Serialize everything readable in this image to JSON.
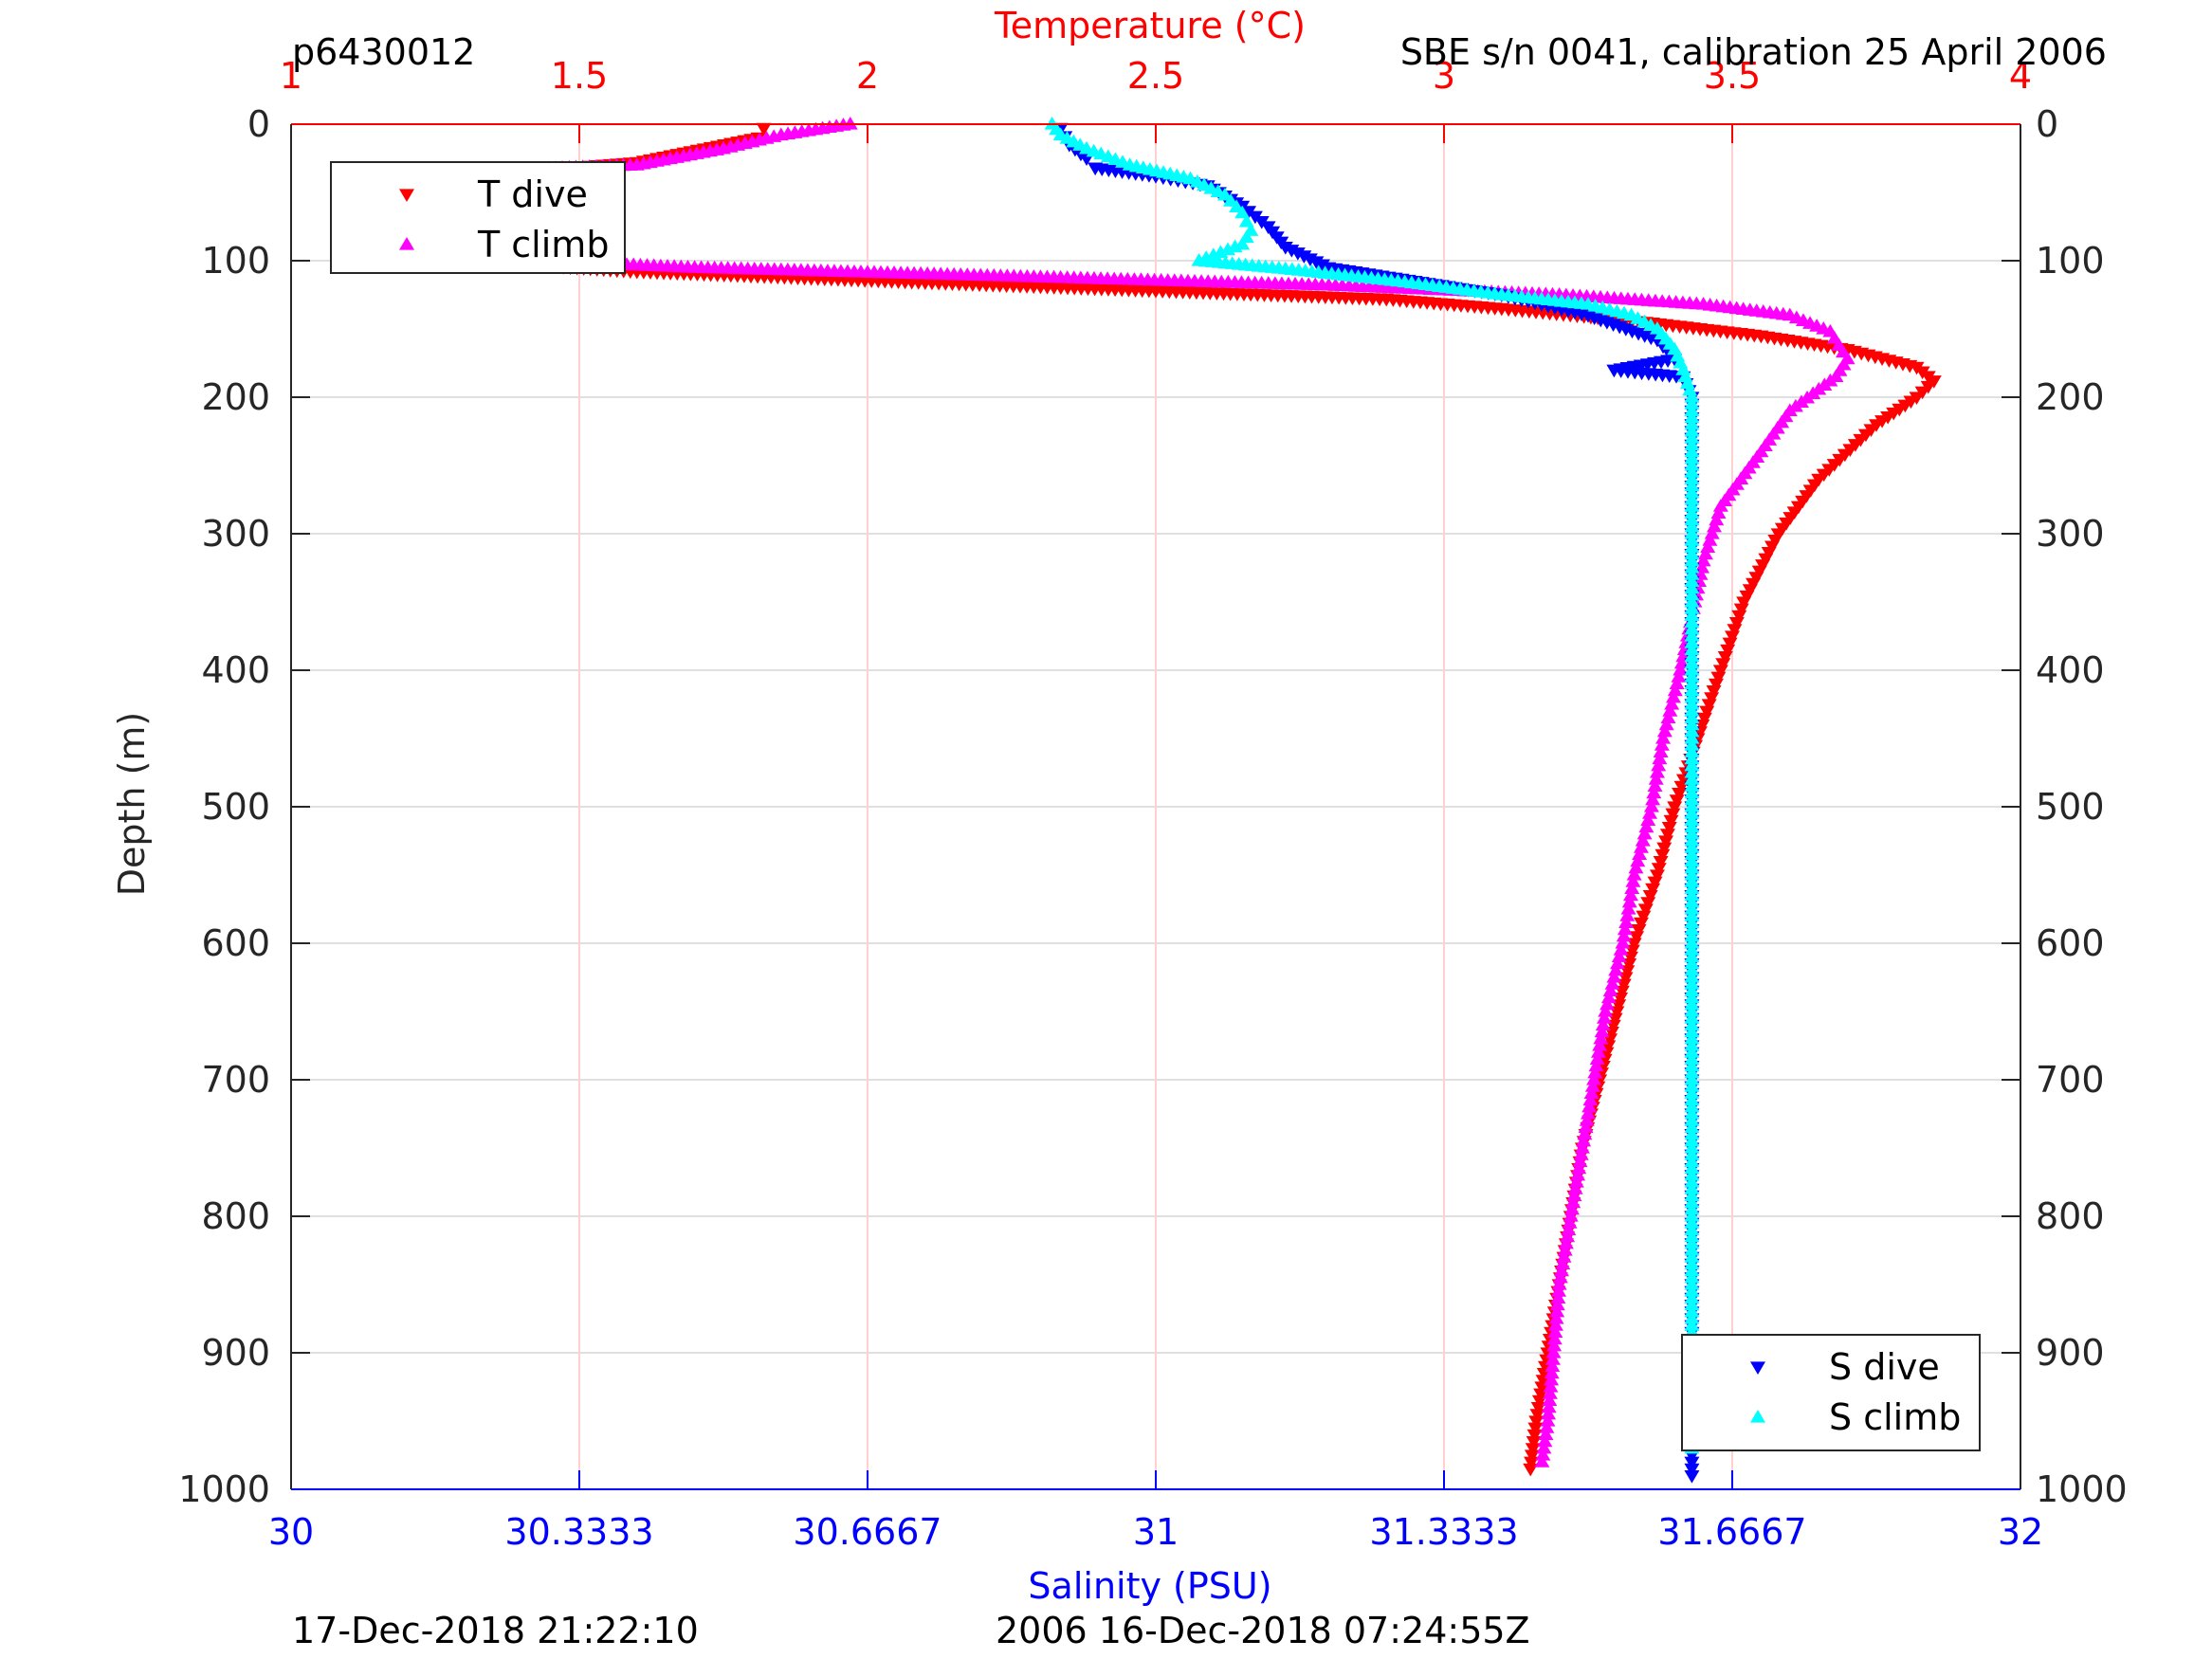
{
  "figure": {
    "id_label": "p6430012",
    "sensor_label": "SBE s/n 0041, calibration 25 April 2006",
    "footer_left": "17-Dec-2018 21:22:10",
    "footer_center": "2006 16-Dec-2018 07:24:55Z"
  },
  "colors": {
    "temperature_axis": "#ff0000",
    "salinity_axis": "#0000ff",
    "t_dive": "#ff0000",
    "t_climb": "#ff00ff",
    "s_dive": "#0000ff",
    "s_climb": "#00ffff",
    "axis": "#262626",
    "grid": "#e0e0e0",
    "temp_grid": "#ffd0d0"
  },
  "chart_data": {
    "type": "scatter",
    "grid": true,
    "y_axis": {
      "label": "Depth (m)",
      "range": [
        0,
        1000
      ],
      "reversed": true,
      "ticks": [
        "0",
        "100",
        "200",
        "300",
        "400",
        "500",
        "600",
        "700",
        "800",
        "900",
        "1000"
      ]
    },
    "x_top_axis": {
      "label": "Temperature (°C)",
      "range": [
        1,
        4
      ],
      "ticks": [
        "1",
        "1.5",
        "2",
        "2.5",
        "3",
        "3.5",
        "4"
      ]
    },
    "x_bottom_axis": {
      "label": "Salinity (PSU)",
      "range": [
        30,
        32
      ],
      "ticks": [
        "30",
        "30.3333",
        "30.6667",
        "31",
        "31.3333",
        "31.6667",
        "32"
      ]
    },
    "legends": [
      {
        "position": "top-left",
        "entries": [
          "T dive",
          "T climb"
        ]
      },
      {
        "position": "bottom-right",
        "entries": [
          "S dive",
          "S climb"
        ]
      }
    ],
    "series": [
      {
        "name": "T dive",
        "axis": "temperature",
        "marker": "triangle-down",
        "points": [
          [
            1.82,
            3
          ],
          [
            1.81,
            10
          ],
          [
            1.6,
            28
          ],
          [
            1.3,
            38
          ],
          [
            1.2,
            45
          ],
          [
            1.18,
            60
          ],
          [
            1.15,
            75
          ],
          [
            1.18,
            90
          ],
          [
            1.3,
            100
          ],
          [
            1.6,
            108
          ],
          [
            2.1,
            116
          ],
          [
            2.5,
            122
          ],
          [
            2.9,
            128
          ],
          [
            3.1,
            135
          ],
          [
            3.35,
            145
          ],
          [
            3.55,
            155
          ],
          [
            3.7,
            165
          ],
          [
            3.82,
            178
          ],
          [
            3.85,
            188
          ],
          [
            3.82,
            200
          ],
          [
            3.75,
            220
          ],
          [
            3.65,
            260
          ],
          [
            3.58,
            300
          ],
          [
            3.52,
            350
          ],
          [
            3.48,
            400
          ],
          [
            3.44,
            450
          ],
          [
            3.4,
            500
          ],
          [
            3.37,
            550
          ],
          [
            3.33,
            600
          ],
          [
            3.3,
            650
          ],
          [
            3.27,
            700
          ],
          [
            3.24,
            750
          ],
          [
            3.22,
            800
          ],
          [
            3.2,
            850
          ],
          [
            3.18,
            900
          ],
          [
            3.16,
            950
          ],
          [
            3.15,
            985
          ]
        ]
      },
      {
        "name": "T climb",
        "axis": "temperature",
        "marker": "triangle-up",
        "points": [
          [
            1.97,
            0
          ],
          [
            1.85,
            8
          ],
          [
            1.75,
            18
          ],
          [
            1.6,
            30
          ],
          [
            1.4,
            33
          ],
          [
            1.22,
            45
          ],
          [
            1.17,
            60
          ],
          [
            1.13,
            75
          ],
          [
            1.15,
            88
          ],
          [
            1.3,
            98
          ],
          [
            1.7,
            105
          ],
          [
            2.3,
            112
          ],
          [
            2.8,
            118
          ],
          [
            3.2,
            125
          ],
          [
            3.45,
            132
          ],
          [
            3.6,
            140
          ],
          [
            3.67,
            152
          ],
          [
            3.7,
            172
          ],
          [
            3.68,
            185
          ],
          [
            3.6,
            210
          ],
          [
            3.55,
            240
          ],
          [
            3.48,
            280
          ],
          [
            3.45,
            320
          ],
          [
            3.43,
            360
          ],
          [
            3.41,
            400
          ],
          [
            3.38,
            450
          ],
          [
            3.36,
            500
          ],
          [
            3.33,
            550
          ],
          [
            3.31,
            600
          ],
          [
            3.28,
            650
          ],
          [
            3.26,
            700
          ],
          [
            3.24,
            750
          ],
          [
            3.22,
            800
          ],
          [
            3.2,
            850
          ],
          [
            3.19,
            900
          ],
          [
            3.18,
            950
          ],
          [
            3.17,
            980
          ]
        ]
      },
      {
        "name": "S dive",
        "axis": "salinity",
        "marker": "triangle-down",
        "points": [
          [
            30.89,
            3
          ],
          [
            30.9,
            15
          ],
          [
            30.92,
            25
          ],
          [
            30.93,
            32
          ],
          [
            31.0,
            38
          ],
          [
            31.06,
            45
          ],
          [
            31.1,
            60
          ],
          [
            31.13,
            75
          ],
          [
            31.15,
            90
          ],
          [
            31.2,
            105
          ],
          [
            31.3,
            115
          ],
          [
            31.4,
            125
          ],
          [
            31.5,
            140
          ],
          [
            31.58,
            158
          ],
          [
            31.6,
            172
          ],
          [
            31.53,
            180
          ],
          [
            31.61,
            185
          ],
          [
            31.62,
            200
          ],
          [
            31.62,
            250
          ],
          [
            31.62,
            300
          ],
          [
            31.62,
            400
          ],
          [
            31.62,
            500
          ],
          [
            31.62,
            600
          ],
          [
            31.62,
            700
          ],
          [
            31.62,
            800
          ],
          [
            31.62,
            900
          ],
          [
            31.62,
            990
          ]
        ]
      },
      {
        "name": "S climb",
        "axis": "salinity",
        "marker": "triangle-up",
        "points": [
          [
            30.88,
            0
          ],
          [
            30.89,
            8
          ],
          [
            30.92,
            18
          ],
          [
            30.97,
            30
          ],
          [
            31.04,
            40
          ],
          [
            31.08,
            52
          ],
          [
            31.1,
            65
          ],
          [
            31.11,
            78
          ],
          [
            31.1,
            88
          ],
          [
            31.05,
            100
          ],
          [
            31.15,
            106
          ],
          [
            31.28,
            115
          ],
          [
            31.4,
            125
          ],
          [
            31.5,
            132
          ],
          [
            31.55,
            140
          ],
          [
            31.58,
            150
          ],
          [
            31.6,
            165
          ],
          [
            31.61,
            180
          ],
          [
            31.62,
            200
          ],
          [
            31.62,
            250
          ],
          [
            31.62,
            300
          ],
          [
            31.62,
            400
          ],
          [
            31.62,
            500
          ],
          [
            31.62,
            600
          ],
          [
            31.62,
            700
          ],
          [
            31.62,
            800
          ],
          [
            31.62,
            900
          ],
          [
            31.62,
            970
          ]
        ]
      }
    ]
  }
}
